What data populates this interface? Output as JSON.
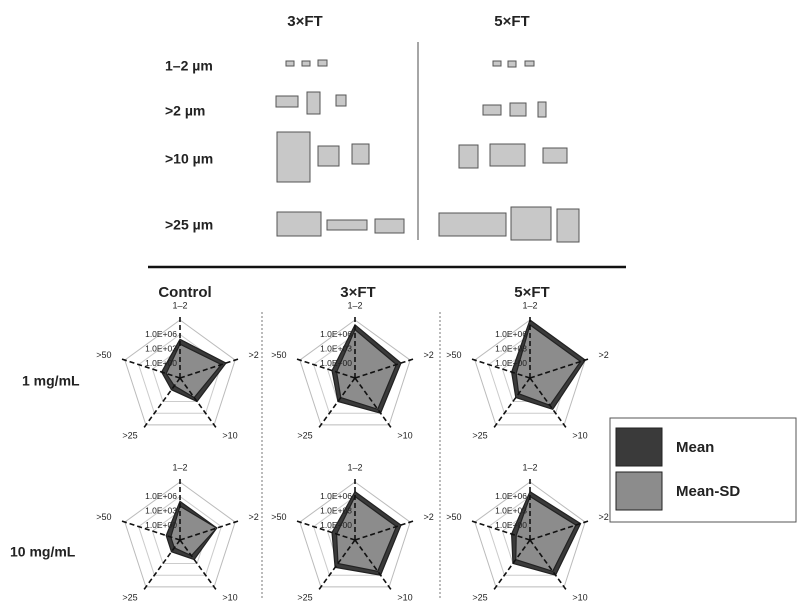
{
  "images": {
    "columns": [
      "3×FT",
      "5×FT"
    ],
    "rows": [
      "1–2 µm",
      ">2 µm",
      ">10 µm",
      ">25 µm"
    ]
  },
  "panels": {
    "columns": [
      "Control",
      "3×FT",
      "5×FT"
    ],
    "rows": [
      "1 mg/mL",
      "10 mg/mL"
    ]
  },
  "chart_data": [
    {
      "type": "radar",
      "categories": [
        "1–2",
        ">2",
        ">10",
        ">25",
        ">50"
      ],
      "log_scale": true,
      "rlim": [
        0.001,
        1000000000
      ],
      "rticks": [
        {
          "value": 1,
          "label": "1.0E+00"
        },
        {
          "value": 1000,
          "label": "1.0E+03"
        },
        {
          "value": 1000000,
          "label": "1.0E+06"
        }
      ],
      "series": [
        {
          "name": "Mean",
          "color": "#3a3a3a",
          "values": [
            100000,
            10000000,
            1000,
            1,
            10
          ]
        },
        {
          "name": "Mean-SD",
          "color": "#8c8c8c",
          "values": [
            10000,
            1000000,
            100,
            0.1,
            1
          ]
        }
      ]
    },
    {
      "type": "radar",
      "categories": [
        "1–2",
        ">2",
        ">10",
        ">25",
        ">50"
      ],
      "log_scale": true,
      "rlim": [
        0.001,
        1000000000
      ],
      "rticks": [
        {
          "value": 1,
          "label": "1.0E+00"
        },
        {
          "value": 1000,
          "label": "1.0E+03"
        },
        {
          "value": 1000000,
          "label": "1.0E+06"
        }
      ],
      "series": [
        {
          "name": "Mean",
          "color": "#3a3a3a",
          "values": [
            100000000,
            10000000,
            1000000,
            1000,
            100
          ]
        },
        {
          "name": "Mean-SD",
          "color": "#8c8c8c",
          "values": [
            10000000,
            1000000,
            100000,
            100,
            10
          ]
        }
      ]
    },
    {
      "type": "radar",
      "categories": [
        "1–2",
        ">2",
        ">10",
        ">25",
        ">50"
      ],
      "log_scale": true,
      "rlim": [
        0.001,
        1000000000
      ],
      "rticks": [
        {
          "value": 1,
          "label": "1.0E+00"
        },
        {
          "value": 1000,
          "label": "1.0E+03"
        },
        {
          "value": 1000000,
          "label": "1.0E+06"
        }
      ],
      "series": [
        {
          "name": "Mean",
          "color": "#3a3a3a",
          "values": [
            1000000000,
            1000000000,
            100000,
            100,
            10
          ]
        },
        {
          "name": "Mean-SD",
          "color": "#8c8c8c",
          "values": [
            100000000,
            100000000,
            10000,
            10,
            1
          ]
        }
      ]
    },
    {
      "type": "radar",
      "categories": [
        "1–2",
        ">2",
        ">10",
        ">25",
        ">50"
      ],
      "log_scale": true,
      "rlim": [
        0.001,
        1000000000
      ],
      "rticks": [
        {
          "value": 1,
          "label": "1.0E+00"
        },
        {
          "value": 1000,
          "label": "1.0E+03"
        },
        {
          "value": 1000000,
          "label": "1.0E+06"
        }
      ],
      "series": [
        {
          "name": "Mean",
          "color": "#3a3a3a",
          "values": [
            100000,
            100000,
            100,
            1,
            1
          ]
        },
        {
          "name": "Mean-SD",
          "color": "#8c8c8c",
          "values": [
            10000,
            100000,
            10,
            0.1,
            0.1
          ]
        }
      ]
    },
    {
      "type": "radar",
      "categories": [
        "1–2",
        ">2",
        ">10",
        ">25",
        ">50"
      ],
      "log_scale": true,
      "rlim": [
        0.001,
        1000000000
      ],
      "rticks": [
        {
          "value": 1,
          "label": "1.0E+00"
        },
        {
          "value": 1000,
          "label": "1.0E+03"
        },
        {
          "value": 1000000,
          "label": "1.0E+06"
        }
      ],
      "series": [
        {
          "name": "Mean",
          "color": "#3a3a3a",
          "values": [
            10000000,
            10000000,
            1000000,
            10000,
            100
          ]
        },
        {
          "name": "Mean-SD",
          "color": "#8c8c8c",
          "values": [
            1000000,
            1000000,
            100000,
            1000,
            10
          ]
        }
      ]
    },
    {
      "type": "radar",
      "categories": [
        "1–2",
        ">2",
        ">10",
        ">25",
        ">50"
      ],
      "log_scale": true,
      "rlim": [
        0.001,
        1000000000
      ],
      "rticks": [
        {
          "value": 1,
          "label": "1.0E+00"
        },
        {
          "value": 1000,
          "label": "1.0E+03"
        },
        {
          "value": 1000000,
          "label": "1.0E+06"
        }
      ],
      "series": [
        {
          "name": "Mean",
          "color": "#3a3a3a",
          "values": [
            10000000,
            100000000,
            1000000,
            1000,
            10
          ]
        },
        {
          "name": "Mean-SD",
          "color": "#8c8c8c",
          "values": [
            1000000,
            10000000,
            100000,
            100,
            1
          ]
        }
      ]
    }
  ]
}
